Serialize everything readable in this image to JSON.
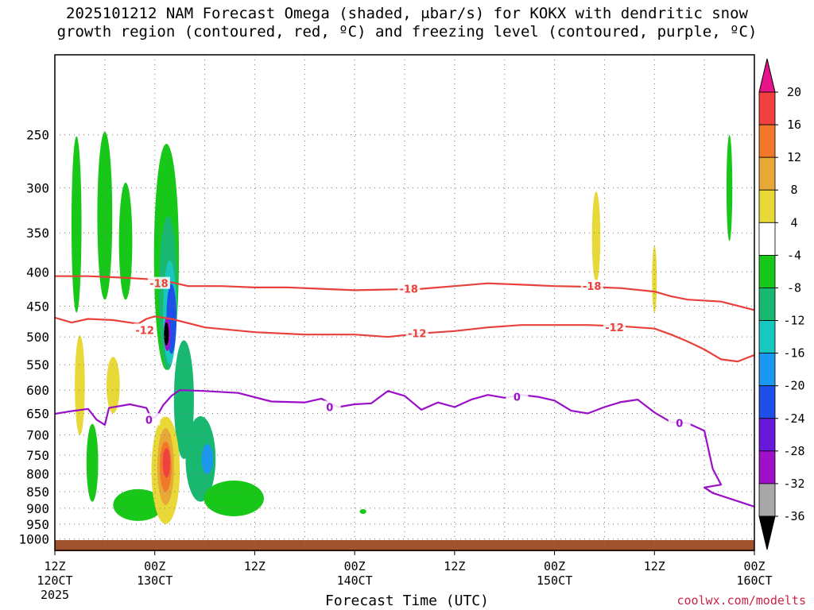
{
  "title": "2025101212 NAM Forecast Omega (shaded, μbar/s) for KOKX with dendritic snow\ngrowth region (contoured, red, ºC) and freezing level (contoured, purple, ºC)",
  "credit": "coolwx.com/modelts",
  "colors": {
    "dendritic_contour": "#e8403a",
    "freezing_contour": "#9a10c8",
    "ground": "#a0522d"
  },
  "chart_data": {
    "type": "heatmap",
    "xlabel": "Forecast Time (UTC)",
    "ylabel": "",
    "x_range": [
      "2025-10-12 12Z",
      "2025-10-16 00Z"
    ],
    "y_axis": {
      "direction": "pressure decreasing upward",
      "scale": "log-pressure",
      "range_hPa": [
        1040,
        190
      ]
    },
    "y_ticks": [
      250,
      300,
      350,
      400,
      450,
      500,
      550,
      600,
      650,
      700,
      750,
      800,
      850,
      900,
      950,
      1000
    ],
    "x_ticks": [
      {
        "line1": "12Z",
        "line2": "120CT",
        "line3": "2025",
        "hour": 0
      },
      {
        "line1": "00Z",
        "line2": "130CT",
        "line3": "",
        "hour": 12
      },
      {
        "line1": "12Z",
        "line2": "",
        "line3": "",
        "hour": 24
      },
      {
        "line1": "00Z",
        "line2": "140CT",
        "line3": "",
        "hour": 36
      },
      {
        "line1": "12Z",
        "line2": "",
        "line3": "",
        "hour": 48
      },
      {
        "line1": "00Z",
        "line2": "150CT",
        "line3": "",
        "hour": 60
      },
      {
        "line1": "12Z",
        "line2": "",
        "line3": "",
        "hour": 72
      },
      {
        "line1": "00Z",
        "line2": "160CT",
        "line3": "",
        "hour": 84
      }
    ],
    "grid": true,
    "colorbar": {
      "units": "μbar/s",
      "labels": [
        "20",
        "16",
        "12",
        "8",
        "4",
        "-4",
        "-8",
        "-12",
        "-16",
        "-20",
        "-24",
        "-28",
        "-32",
        "-36"
      ],
      "bins": [
        {
          "range": [
            20,
            99
          ],
          "color": "#e8148c"
        },
        {
          "range": [
            16,
            20
          ],
          "color": "#f04040"
        },
        {
          "range": [
            12,
            16
          ],
          "color": "#f07828"
        },
        {
          "range": [
            8,
            12
          ],
          "color": "#e8a838"
        },
        {
          "range": [
            4,
            8
          ],
          "color": "#e8d838"
        },
        {
          "range": [
            -4,
            4
          ],
          "color": "#ffffff"
        },
        {
          "range": [
            -8,
            -4
          ],
          "color": "#18c818"
        },
        {
          "range": [
            -12,
            -8
          ],
          "color": "#18b870"
        },
        {
          "range": [
            -16,
            -12
          ],
          "color": "#18c8c0"
        },
        {
          "range": [
            -20,
            -16
          ],
          "color": "#1c98f0"
        },
        {
          "range": [
            -24,
            -20
          ],
          "color": "#1c50e8"
        },
        {
          "range": [
            -28,
            -24
          ],
          "color": "#6818d8"
        },
        {
          "range": [
            -32,
            -28
          ],
          "color": "#a010c8"
        },
        {
          "range": [
            -36,
            -32
          ],
          "color": "#a8a8a8"
        },
        {
          "range": [
            -99,
            -36
          ],
          "color": "#000000"
        }
      ]
    },
    "contours": [
      {
        "name": "-18",
        "label": "-18",
        "color": "#e8403a",
        "points": [
          [
            0,
            406
          ],
          [
            4,
            406
          ],
          [
            8,
            408
          ],
          [
            11,
            410
          ],
          [
            13,
            412
          ],
          [
            16,
            420
          ],
          [
            20,
            420
          ],
          [
            24,
            422
          ],
          [
            28,
            422
          ],
          [
            32,
            424
          ],
          [
            36,
            426
          ],
          [
            40,
            425
          ],
          [
            44,
            424
          ],
          [
            48,
            420
          ],
          [
            52,
            416
          ],
          [
            56,
            418
          ],
          [
            60,
            420
          ],
          [
            64,
            421
          ],
          [
            68,
            423
          ],
          [
            72,
            428
          ],
          [
            74,
            435
          ],
          [
            76,
            440
          ],
          [
            80,
            443
          ],
          [
            84,
            456
          ]
        ],
        "label_hours": [
          [
            12.5,
            416
          ],
          [
            42.5,
            424
          ],
          [
            64.5,
            420
          ]
        ]
      },
      {
        "name": "-12",
        "label": "-12",
        "color": "#e8403a",
        "points": [
          [
            0,
            468
          ],
          [
            2,
            476
          ],
          [
            4,
            470
          ],
          [
            7,
            472
          ],
          [
            10,
            478
          ],
          [
            11,
            470
          ],
          [
            12,
            466
          ],
          [
            14,
            470
          ],
          [
            18,
            484
          ],
          [
            24,
            492
          ],
          [
            30,
            496
          ],
          [
            36,
            496
          ],
          [
            40,
            500
          ],
          [
            44,
            494
          ],
          [
            48,
            490
          ],
          [
            52,
            484
          ],
          [
            56,
            480
          ],
          [
            60,
            480
          ],
          [
            64,
            480
          ],
          [
            68,
            482
          ],
          [
            72,
            486
          ],
          [
            74,
            496
          ],
          [
            76,
            508
          ],
          [
            78,
            522
          ],
          [
            80,
            540
          ],
          [
            82,
            544
          ],
          [
            84,
            532
          ]
        ],
        "label_hours": [
          [
            10.8,
            488
          ],
          [
            43.5,
            494
          ],
          [
            67.2,
            484
          ]
        ]
      },
      {
        "name": "0",
        "label": "0",
        "color": "#9a10c8",
        "points": [
          [
            0,
            651
          ],
          [
            2,
            645
          ],
          [
            4,
            640
          ],
          [
            5,
            664
          ],
          [
            6,
            676
          ],
          [
            6.5,
            638
          ],
          [
            9,
            630
          ],
          [
            11,
            638
          ],
          [
            11.5,
            658
          ],
          [
            12,
            660
          ],
          [
            12.5,
            648
          ],
          [
            13,
            632
          ],
          [
            14,
            612
          ],
          [
            15,
            600
          ],
          [
            18,
            602
          ],
          [
            22,
            606
          ],
          [
            26,
            624
          ],
          [
            30,
            626
          ],
          [
            32,
            618
          ],
          [
            34,
            636
          ],
          [
            36,
            630
          ],
          [
            38,
            628
          ],
          [
            40,
            602
          ],
          [
            42,
            612
          ],
          [
            44,
            642
          ],
          [
            46,
            626
          ],
          [
            48,
            636
          ],
          [
            50,
            620
          ],
          [
            52,
            610
          ],
          [
            54,
            616
          ],
          [
            56,
            610
          ],
          [
            58,
            614
          ],
          [
            60,
            622
          ],
          [
            62,
            644
          ],
          [
            64,
            650
          ],
          [
            66,
            636
          ],
          [
            68,
            625
          ],
          [
            70,
            620
          ],
          [
            72,
            648
          ],
          [
            74,
            670
          ],
          [
            76,
            672
          ],
          [
            78,
            690
          ],
          [
            79,
            786
          ],
          [
            80,
            830
          ],
          [
            78,
            838
          ],
          [
            79,
            854
          ],
          [
            84,
            895
          ]
        ],
        "label_hours": [
          [
            11.3,
            664
          ],
          [
            33,
            636
          ],
          [
            55.5,
            614
          ],
          [
            75,
            672
          ]
        ]
      }
    ],
    "shaded_regions": [
      {
        "omega": -6,
        "band": "-8 to -4",
        "color": "#18c818",
        "note": "upward motion cells early forecast and near 00Z 13OCT"
      },
      {
        "omega": -10,
        "band": "-12 to -8",
        "color": "#18b870"
      },
      {
        "omega": -14,
        "band": "-16 to -12",
        "color": "#18c8c0"
      },
      {
        "omega": -18,
        "band": "-20 to -16",
        "color": "#1c98f0"
      },
      {
        "omega": -22,
        "band": "-24 to -20",
        "color": "#1c50e8"
      },
      {
        "omega": -26,
        "band": "-28 to -24",
        "color": "#6818d8"
      },
      {
        "omega": -30,
        "band": "-32 to -28",
        "color": "#a010c8"
      },
      {
        "omega": -34,
        "band": "-36 to -32",
        "color": "#a8a8a8"
      },
      {
        "omega": -40,
        "band": "< -36",
        "color": "#000000"
      },
      {
        "omega": 6,
        "band": "4 to 8",
        "color": "#e8d838"
      },
      {
        "omega": 10,
        "band": "8 to 12",
        "color": "#e8a838"
      },
      {
        "omega": 14,
        "band": "12 to 16",
        "color": "#f07828"
      },
      {
        "omega": 18,
        "band": "16 to 20",
        "color": "#f04040"
      }
    ]
  }
}
